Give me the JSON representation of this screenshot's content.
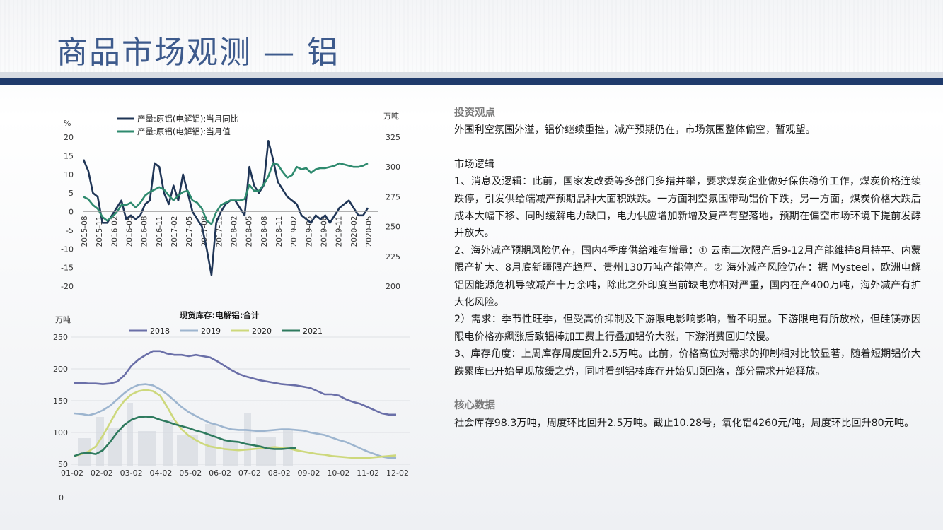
{
  "page": {
    "title": "商品市场观测 — 铝"
  },
  "chart_data": [
    {
      "type": "line",
      "ylabel_left": "%",
      "ylabel_right": "万吨",
      "ylim_left": [
        -20,
        20
      ],
      "ylim_right": [
        200,
        325
      ],
      "yticks_left": [
        "20",
        "15",
        "10",
        "5",
        "0",
        "-5",
        "-10",
        "-15",
        "-20"
      ],
      "yticks_right": [
        "325",
        "300",
        "275",
        "250",
        "225",
        "200"
      ],
      "xticks": [
        "2015-08",
        "2015-11",
        "2016-02",
        "2016-05",
        "2016-08",
        "2016-11",
        "2017-02",
        "2017-05",
        "2017-08",
        "2017-11",
        "2018-02",
        "2018-05",
        "2018-08",
        "2018-11",
        "2019-02",
        "2019-05",
        "2019-08",
        "2019-11",
        "2020-02",
        "2020-05"
      ],
      "series": [
        {
          "name": "产量:原铝(电解铝):当月同比",
          "axis": "left",
          "color": "#1f3556",
          "values": [
            14,
            11,
            5,
            4,
            -3,
            -3,
            -1,
            1,
            3,
            -2,
            -1,
            -2,
            -1,
            2,
            3,
            13,
            12,
            5,
            2,
            7,
            3,
            10,
            5,
            0,
            -2,
            -4,
            -10,
            -17,
            -3,
            0,
            2,
            3,
            3,
            1,
            -1,
            12,
            7,
            5,
            7,
            19,
            14,
            8,
            6,
            4,
            3,
            2,
            -1,
            -2,
            -3,
            -1,
            -2,
            -1,
            -3,
            -1,
            1,
            2,
            3,
            1,
            -1,
            -1,
            1
          ]
        },
        {
          "name": "产量:原铝(电解铝):当月值",
          "axis": "right",
          "color": "#2e8a6e",
          "values": [
            275,
            273,
            268,
            265,
            258,
            255,
            258,
            262,
            268,
            268,
            270,
            266,
            270,
            276,
            279,
            281,
            283,
            281,
            276,
            272,
            276,
            279,
            280,
            272,
            270,
            265,
            255,
            252,
            262,
            268,
            270,
            272,
            272,
            272,
            273,
            285,
            280,
            280,
            285,
            292,
            303,
            302,
            296,
            291,
            293,
            300,
            298,
            299,
            295,
            298,
            299,
            299,
            300,
            301,
            303,
            302,
            301,
            300,
            300,
            301,
            303
          ]
        }
      ]
    },
    {
      "type": "line",
      "title": "现货库存:电解铝:合计",
      "ylabel": "万吨",
      "ylim": [
        50,
        250
      ],
      "yticks": [
        "250",
        "200",
        "150",
        "100",
        "50"
      ],
      "extra_tick": "0",
      "xticks": [
        "01-02",
        "02-02",
        "03-02",
        "04-02",
        "05-02",
        "06-02",
        "07-02",
        "08-02",
        "09-02",
        "10-02",
        "11-02",
        "12-02"
      ],
      "series": [
        {
          "name": "2018",
          "color": "#6a6fa8",
          "values": [
            178,
            178,
            177,
            177,
            176,
            177,
            180,
            190,
            205,
            215,
            222,
            228,
            228,
            224,
            222,
            222,
            220,
            222,
            220,
            218,
            212,
            205,
            198,
            192,
            188,
            185,
            182,
            180,
            178,
            176,
            175,
            174,
            172,
            170,
            165,
            160,
            160,
            158,
            152,
            148,
            145,
            140,
            135,
            130,
            128,
            128
          ]
        },
        {
          "name": "2019",
          "color": "#9db5cf",
          "values": [
            130,
            129,
            127,
            130,
            135,
            142,
            152,
            162,
            170,
            175,
            176,
            174,
            168,
            160,
            150,
            140,
            132,
            126,
            120,
            115,
            112,
            108,
            105,
            104,
            104,
            103,
            102,
            103,
            104,
            105,
            105,
            104,
            103,
            100,
            98,
            96,
            92,
            88,
            85,
            80,
            75,
            70,
            66,
            62,
            60,
            60
          ]
        },
        {
          "name": "2020",
          "color": "#cdd87c",
          "values": [
            63,
            66,
            70,
            78,
            95,
            115,
            135,
            150,
            160,
            165,
            167,
            165,
            158,
            140,
            120,
            105,
            95,
            88,
            82,
            78,
            76,
            74,
            73,
            72,
            73,
            74,
            75,
            76,
            77,
            76,
            75,
            72,
            70,
            68,
            66,
            65,
            63,
            62,
            61,
            60,
            60,
            60,
            61,
            62,
            63,
            64
          ]
        },
        {
          "name": "2021",
          "color": "#2e7a5e",
          "values": [
            63,
            67,
            68,
            66,
            72,
            85,
            100,
            112,
            120,
            124,
            125,
            124,
            120,
            117,
            113,
            110,
            107,
            103,
            100,
            96,
            92,
            88,
            86,
            85,
            82,
            80,
            78,
            75,
            74,
            74,
            75,
            76
          ]
        }
      ]
    }
  ],
  "text": {
    "view_head": "投资观点",
    "view_body": "外围利空氛围外溢，铝价继续重挫，减产预期仍在，市场氛围整体偏空，暂观望。",
    "logic_head": "市场逻辑",
    "logic_p1": "1、消息及逻辑：此前，国家发改委等多部门多措并举，要求煤炭企业做好保供稳价工作，煤炭价格连续跌停，引发供给端减产预期品种大面积跌跌。一方面利空氛围带动铝价下跌，另一方面，煤炭价格大跌后成本大幅下移、同时缓解电力缺口，电力供应增加新增及复产有望落地，预期在偏空市场环境下提前发酵并放大。",
    "logic_p2": "2、海外减产预期风险仍在，国内4季度供给难有增量：① 云南二次限产后9-12月产能维持8月持平、内蒙限产扩大、8月底新疆限产趋严、贵州130万吨产能停产。② 海外减产风险仍在：据 Mysteel，欧洲电解铝因能源危机导致减产十万余吨，除此之外印度当前缺电亦相对严重，国内在产400万吨，海外减产有扩大化风险。",
    "logic_p3": "2）需求：季节性旺季，但受高价抑制及下游限电影响影响，暂不明显。下游限电有所放松，但硅镁亦因限电价格亦飙涨后致铝棒加工费上行叠加铝价大涨，下游消费回归较慢。",
    "logic_p4": "3、库存角度：上周库存周度回升2.5万吨。此前，价格高位对需求的抑制相对比较显著，随着短期铝价大跌累库已开始呈现放缓之势，同时看到铝棒库存开始见顶回落，部分需求开始释放。",
    "core_head": "核心数据",
    "core_body": "社会库存98.3万吨，周度环比回升2.5万吨。截止10.28号，氧化铝4260元/吨，周度环比回升80元吨。"
  }
}
